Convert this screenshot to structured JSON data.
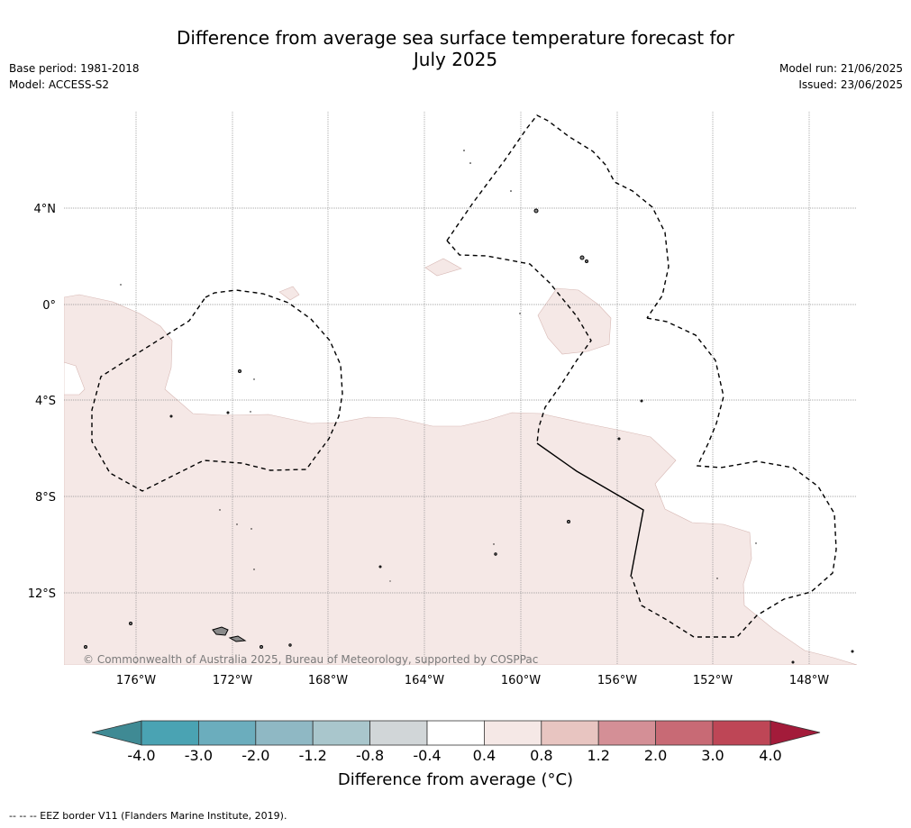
{
  "title_line1": "Difference from average sea surface temperature forecast for",
  "title_line2": "July 2025",
  "meta_left": {
    "base_period": "Base period: 1981-2018",
    "model": "Model: ACCESS-S2"
  },
  "meta_right": {
    "model_run": "Model run: 21/06/2025",
    "issued": "Issued: 23/06/2025"
  },
  "map": {
    "lon_ticks": [
      "176°W",
      "172°W",
      "168°W",
      "164°W",
      "160°W",
      "156°W",
      "152°W",
      "148°W"
    ],
    "lat_ticks": [
      "4°N",
      "0°",
      "4°S",
      "8°S",
      "12°S"
    ],
    "copyright": "© Commonwealth of Australia 2025, Bureau of Meteorology, supported by COSPPac",
    "anomaly_color": "#f5e8e6",
    "land_color": "#8a8a8a"
  },
  "colorbar": {
    "labels": [
      "-4.0",
      "-3.0",
      "-2.0",
      "-1.2",
      "-0.8",
      "-0.4",
      "0.4",
      "0.8",
      "1.2",
      "2.0",
      "3.0",
      "4.0"
    ],
    "colors": [
      "#3f8a94",
      "#4aa3b3",
      "#6badbd",
      "#8fb8c4",
      "#a9c6cc",
      "#d1d6d8",
      "#ffffff",
      "#f5e8e6",
      "#e8c5c1",
      "#d48f96",
      "#c86a75",
      "#be4656",
      "#a31b3a"
    ],
    "label": "Difference from average (°C)"
  },
  "footnote": "-- -- -- EEZ border V11 (Flanders Marine Institute, 2019)."
}
